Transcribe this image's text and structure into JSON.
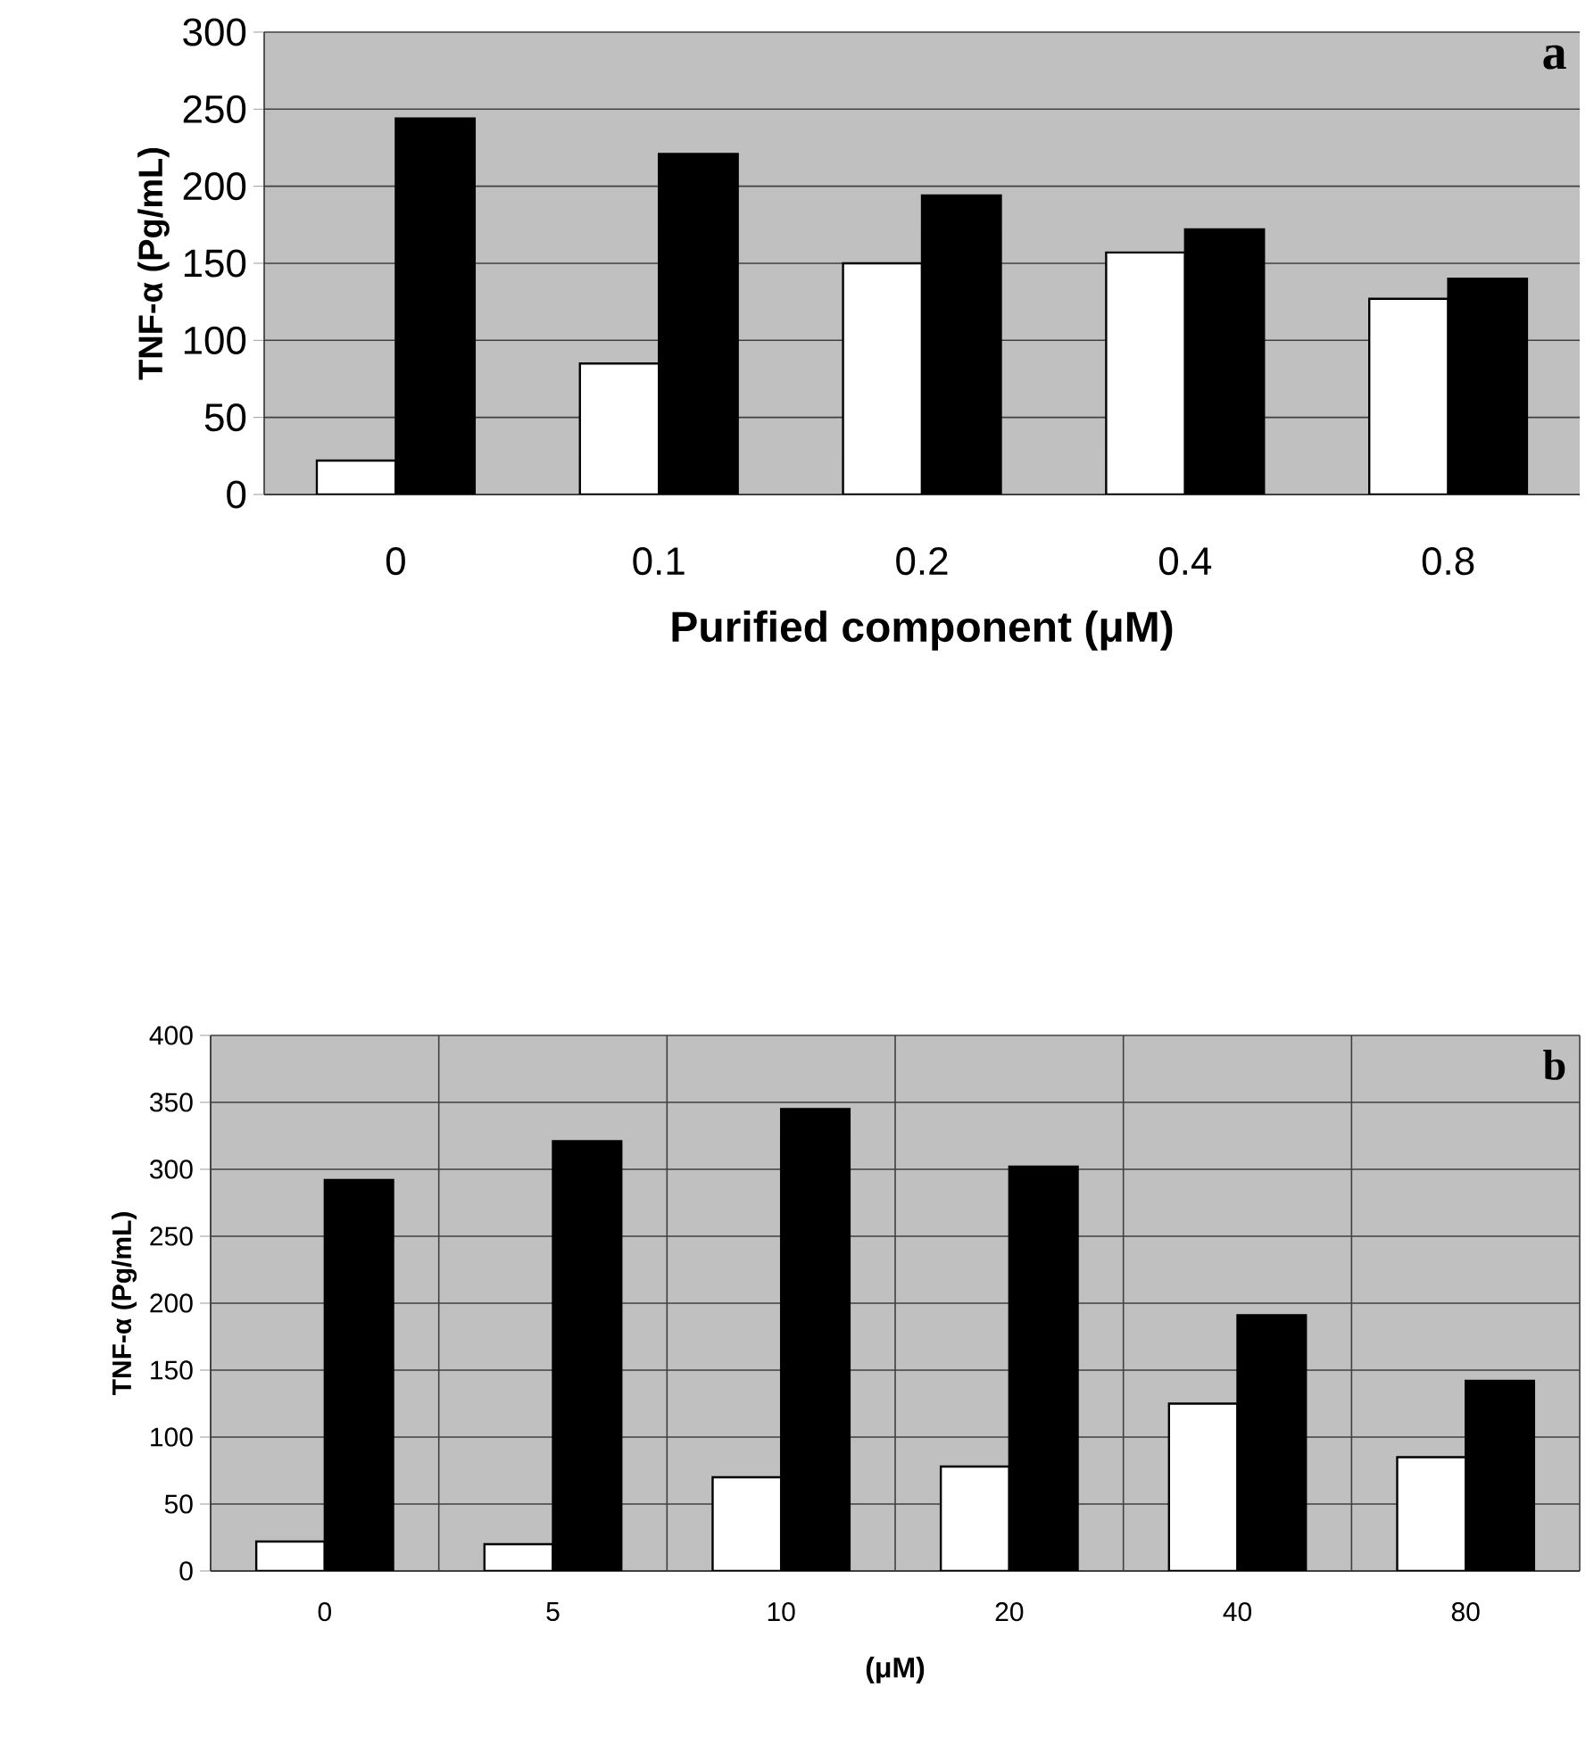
{
  "chart_data": [
    {
      "type": "bar",
      "categories": [
        "0",
        "0.1",
        "0.2",
        "0.4",
        "0.8"
      ],
      "xlabel": "Purified component (μM)",
      "ylabel": "TNF-α (Pg/mL)",
      "ylim": [
        0,
        300
      ],
      "yticks": [
        0,
        50,
        100,
        150,
        200,
        250,
        300
      ],
      "grid": "y",
      "annotations": [
        "a"
      ],
      "series": [
        {
          "color": "#ffffff",
          "values": [
            22,
            85,
            150,
            157,
            127
          ]
        },
        {
          "color": "#000000",
          "values": [
            244,
            221,
            194,
            172,
            140
          ]
        }
      ]
    },
    {
      "type": "bar",
      "categories": [
        "0",
        "5",
        "10",
        "20",
        "40",
        "80"
      ],
      "xlabel": "(μM)",
      "ylabel": "TNF-α (Pg/mL)",
      "ylim": [
        0,
        400
      ],
      "yticks": [
        0,
        50,
        100,
        150,
        200,
        250,
        300,
        350,
        400
      ],
      "grid": true,
      "annotations": [
        "b"
      ],
      "series": [
        {
          "color": "#ffffff",
          "values": [
            22,
            20,
            70,
            78,
            125,
            85
          ]
        },
        {
          "color": "#000000",
          "values": [
            292,
            321,
            345,
            302,
            191,
            142
          ]
        }
      ]
    }
  ]
}
